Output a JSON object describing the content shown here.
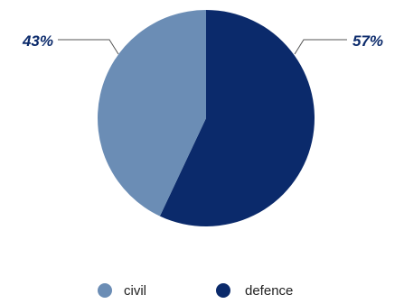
{
  "chart_data": {
    "type": "pie",
    "title": "",
    "slices": [
      {
        "label": "civil",
        "value": 43,
        "display": "43%",
        "color": "#6b8db5"
      },
      {
        "label": "defence",
        "value": 57,
        "display": "57%",
        "color": "#0b2a6b"
      }
    ],
    "legend_position": "bottom",
    "start_angle_deg": 0,
    "direction": "clockwise"
  }
}
